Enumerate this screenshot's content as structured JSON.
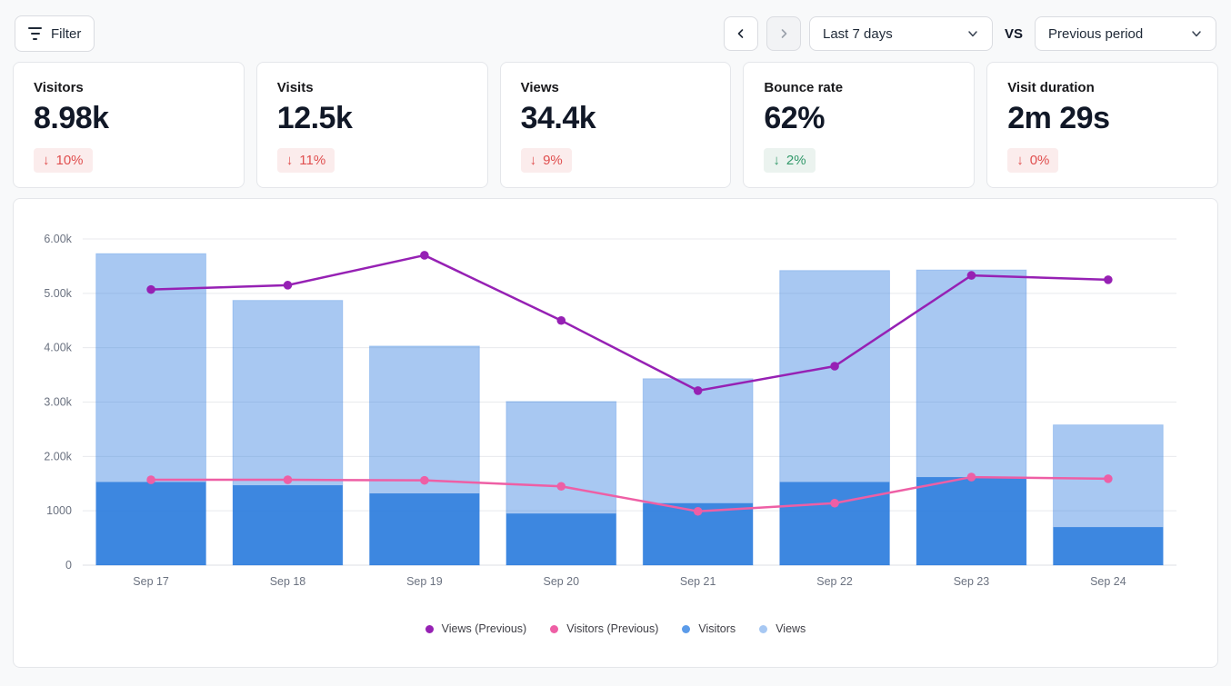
{
  "toolbar": {
    "filter_label": "Filter",
    "date_range_value": "Last 7 days",
    "vs_label": "VS",
    "comparison_value": "Previous period"
  },
  "stats": [
    {
      "label": "Visitors",
      "value": "8.98k",
      "arrow": "↓",
      "change": "10%",
      "sentiment": "negative"
    },
    {
      "label": "Visits",
      "value": "12.5k",
      "arrow": "↓",
      "change": "11%",
      "sentiment": "negative"
    },
    {
      "label": "Views",
      "value": "34.4k",
      "arrow": "↓",
      "change": "9%",
      "sentiment": "negative"
    },
    {
      "label": "Bounce rate",
      "value": "62%",
      "arrow": "↓",
      "change": "2%",
      "sentiment": "positive"
    },
    {
      "label": "Visit duration",
      "value": "2m 29s",
      "arrow": "↓",
      "change": "0%",
      "sentiment": "negative"
    }
  ],
  "chart_data": {
    "type": "bar",
    "subtype": "overlaid bars with comparison lines",
    "categories": [
      "Sep 17",
      "Sep 18",
      "Sep 19",
      "Sep 20",
      "Sep 21",
      "Sep 22",
      "Sep 23",
      "Sep 24"
    ],
    "series": [
      {
        "name": "Views",
        "render": "bar",
        "fill": "rgba(47,125,224,0.42)",
        "stroke": "rgba(47,125,224,0.25)",
        "values": [
          5730,
          4870,
          4030,
          3010,
          3430,
          5420,
          5430,
          2580
        ]
      },
      {
        "name": "Visitors",
        "render": "bar",
        "fill": "rgba(31,117,219,0.78)",
        "stroke": "none",
        "values": [
          1530,
          1470,
          1320,
          950,
          1140,
          1530,
          1620,
          700
        ]
      },
      {
        "name": "Views (Previous)",
        "render": "line",
        "color": "#9621B4",
        "values": [
          5070,
          5150,
          5700,
          4500,
          3210,
          3660,
          5330,
          5250
        ]
      },
      {
        "name": "Visitors (Previous)",
        "render": "line",
        "color": "#EE5FA5",
        "values": [
          1570,
          1570,
          1560,
          1450,
          990,
          1140,
          1620,
          1590
        ]
      }
    ],
    "ylim": [
      0,
      6000
    ],
    "y_ticks": [
      {
        "value": 0,
        "label": "0"
      },
      {
        "value": 1000,
        "label": "1000"
      },
      {
        "value": 2000,
        "label": "2.00k"
      },
      {
        "value": 3000,
        "label": "3.00k"
      },
      {
        "value": 4000,
        "label": "4.00k"
      },
      {
        "value": 5000,
        "label": "5.00k"
      },
      {
        "value": 6000,
        "label": "6.00k"
      }
    ],
    "grid": true,
    "legend_position": "bottom",
    "legend": [
      {
        "label": "Views (Previous)",
        "color": "#9621B4"
      },
      {
        "label": "Visitors (Previous)",
        "color": "#EE5FA5"
      },
      {
        "label": "Visitors",
        "color": "#5B9BE9"
      },
      {
        "label": "Views",
        "color": "#A7C8F3"
      }
    ],
    "colors": {
      "grid_line": "#E8EAED",
      "axis_line": "#DCDFE4",
      "tick_text": "#6B7280"
    }
  }
}
